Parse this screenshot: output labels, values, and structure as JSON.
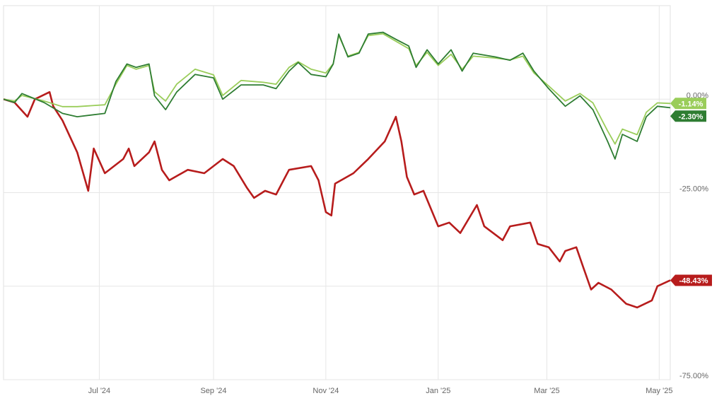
{
  "chart_data": {
    "type": "line",
    "ylim": [
      -75,
      25
    ],
    "xlim": [
      "2024-05-10",
      "2025-05-07"
    ],
    "grid": true,
    "legend": "none",
    "x_ticks": [
      {
        "date": "2024-07-01",
        "label": "Jul '24"
      },
      {
        "date": "2024-09-01",
        "label": "Sep '24"
      },
      {
        "date": "2024-11-01",
        "label": "Nov '24"
      },
      {
        "date": "2025-01-01",
        "label": "Jan '25"
      },
      {
        "date": "2025-03-01",
        "label": "Mar '25"
      },
      {
        "date": "2025-05-01",
        "label": "May '25"
      }
    ],
    "y_ticks": [
      {
        "value": 0,
        "label": "0.00%"
      },
      {
        "value": -25,
        "label": "-25.00%"
      },
      {
        "value": -50,
        "label": ""
      },
      {
        "value": -75,
        "label": "-75.00%"
      }
    ],
    "series": [
      {
        "color": "#9acd5a",
        "end_label": "-1.14%",
        "x": [
          "2024-05-10",
          "2024-05-16",
          "2024-05-20",
          "2024-06-01",
          "2024-06-11",
          "2024-06-19",
          "2024-07-04",
          "2024-07-10",
          "2024-07-16",
          "2024-07-21",
          "2024-07-28",
          "2024-07-31",
          "2024-08-06",
          "2024-08-12",
          "2024-08-22",
          "2024-09-01",
          "2024-09-06",
          "2024-09-16",
          "2024-09-28",
          "2024-10-05",
          "2024-10-12",
          "2024-10-17",
          "2024-10-24",
          "2024-11-01",
          "2024-11-05",
          "2024-11-08",
          "2024-11-13",
          "2024-11-19",
          "2024-11-24",
          "2024-12-02",
          "2024-12-09",
          "2024-12-16",
          "2024-12-20",
          "2024-12-26",
          "2025-01-01",
          "2025-01-08",
          "2025-01-14",
          "2025-01-20",
          "2025-02-01",
          "2025-02-09",
          "2025-02-16",
          "2025-02-22",
          "2025-03-02",
          "2025-03-11",
          "2025-03-19",
          "2025-03-26",
          "2025-04-03",
          "2025-04-07",
          "2025-04-11",
          "2025-04-19",
          "2025-04-24",
          "2025-04-30",
          "2025-05-07"
        ],
        "y": [
          0,
          -0.5,
          1.0,
          -0.5,
          -2.0,
          -2.0,
          -1.5,
          4.0,
          9.0,
          8.0,
          9.0,
          2.0,
          -0.5,
          4.0,
          8.0,
          6.5,
          1.0,
          5.0,
          4.5,
          4.0,
          8.5,
          10.0,
          8.0,
          7.0,
          9.5,
          17.0,
          11.5,
          12.5,
          17.0,
          17.5,
          15.5,
          13.5,
          9.0,
          12.5,
          9.0,
          12.0,
          8.0,
          11.5,
          11.0,
          10.5,
          11.5,
          7.0,
          3.5,
          -0.5,
          1.5,
          -1.0,
          -8.5,
          -12.0,
          -8.0,
          -9.5,
          -3.5,
          -1.0,
          -1.14
        ]
      },
      {
        "color": "#2e7d32",
        "end_label": "-2.30%",
        "x": [
          "2024-05-10",
          "2024-05-16",
          "2024-05-20",
          "2024-06-01",
          "2024-06-11",
          "2024-06-19",
          "2024-07-04",
          "2024-07-10",
          "2024-07-16",
          "2024-07-21",
          "2024-07-28",
          "2024-07-31",
          "2024-08-06",
          "2024-08-12",
          "2024-08-22",
          "2024-09-01",
          "2024-09-06",
          "2024-09-16",
          "2024-09-28",
          "2024-10-05",
          "2024-10-12",
          "2024-10-17",
          "2024-10-24",
          "2024-11-01",
          "2024-11-05",
          "2024-11-08",
          "2024-11-13",
          "2024-11-19",
          "2024-11-24",
          "2024-12-02",
          "2024-12-09",
          "2024-12-16",
          "2024-12-20",
          "2024-12-26",
          "2025-01-01",
          "2025-01-08",
          "2025-01-14",
          "2025-01-20",
          "2025-02-01",
          "2025-02-09",
          "2025-02-16",
          "2025-02-22",
          "2025-03-02",
          "2025-03-11",
          "2025-03-19",
          "2025-03-26",
          "2025-04-03",
          "2025-04-07",
          "2025-04-11",
          "2025-04-19",
          "2025-04-24",
          "2025-04-30",
          "2025-05-07"
        ],
        "y": [
          0,
          -0.9,
          1.5,
          -0.9,
          -3.8,
          -4.7,
          -3.8,
          4.7,
          9.4,
          8.5,
          9.4,
          0.9,
          -2.8,
          1.9,
          6.6,
          5.7,
          0,
          3.8,
          3.8,
          2.8,
          7.5,
          9.8,
          6.6,
          6.0,
          9.4,
          17.4,
          11.3,
          12.3,
          17.4,
          17.9,
          16.0,
          14.2,
          8.5,
          13.2,
          9.4,
          13.2,
          7.5,
          12.3,
          11.3,
          10.4,
          12.3,
          7.5,
          2.8,
          -1.9,
          0.9,
          -2.8,
          -11.3,
          -16.0,
          -9.4,
          -11.3,
          -4.7,
          -1.9,
          -2.3
        ]
      },
      {
        "color": "#b71c1c",
        "end_label": "-48.43%",
        "x": [
          "2024-05-10",
          "2024-05-16",
          "2024-05-23",
          "2024-05-27",
          "2024-06-04",
          "2024-06-06",
          "2024-06-11",
          "2024-06-19",
          "2024-06-25",
          "2024-06-28",
          "2024-07-04",
          "2024-07-14",
          "2024-07-17",
          "2024-07-20",
          "2024-07-28",
          "2024-07-31",
          "2024-08-04",
          "2024-08-08",
          "2024-08-18",
          "2024-08-27",
          "2024-09-06",
          "2024-09-12",
          "2024-09-19",
          "2024-09-23",
          "2024-09-29",
          "2024-10-05",
          "2024-10-09",
          "2024-10-12",
          "2024-10-24",
          "2024-10-28",
          "2024-11-01",
          "2024-11-04",
          "2024-11-06",
          "2024-11-16",
          "2024-11-24",
          "2024-12-03",
          "2024-12-09",
          "2024-12-12",
          "2024-12-15",
          "2024-12-19",
          "2024-12-24",
          "2025-01-01",
          "2025-01-07",
          "2025-01-13",
          "2025-01-22",
          "2025-01-26",
          "2025-02-05",
          "2025-02-09",
          "2025-02-20",
          "2025-02-24",
          "2025-03-02",
          "2025-03-08",
          "2025-03-11",
          "2025-03-17",
          "2025-03-21",
          "2025-03-25",
          "2025-03-29",
          "2025-04-05",
          "2025-04-13",
          "2025-04-19",
          "2025-04-27",
          "2025-04-30",
          "2025-05-07"
        ],
        "y": [
          0,
          -0.9,
          -4.7,
          0,
          1.9,
          -1.9,
          -5.7,
          -14.2,
          -24.5,
          -13.2,
          -19.8,
          -16.0,
          -13.2,
          -17.9,
          -14.2,
          -11.3,
          -18.9,
          -21.7,
          -18.9,
          -19.8,
          -16.0,
          -17.9,
          -23.6,
          -26.4,
          -24.5,
          -25.5,
          -21.7,
          -18.9,
          -17.9,
          -21.7,
          -30.2,
          -31.1,
          -22.6,
          -19.8,
          -16.0,
          -11.3,
          -4.7,
          -11.3,
          -20.8,
          -25.5,
          -24.5,
          -34.0,
          -33.0,
          -35.8,
          -28.3,
          -34.0,
          -37.7,
          -34.0,
          -33.0,
          -38.7,
          -39.6,
          -43.4,
          -40.6,
          -39.6,
          -45.3,
          -50.9,
          -49.1,
          -50.9,
          -54.7,
          -55.7,
          -53.8,
          -50.0,
          -48.43
        ]
      }
    ]
  }
}
